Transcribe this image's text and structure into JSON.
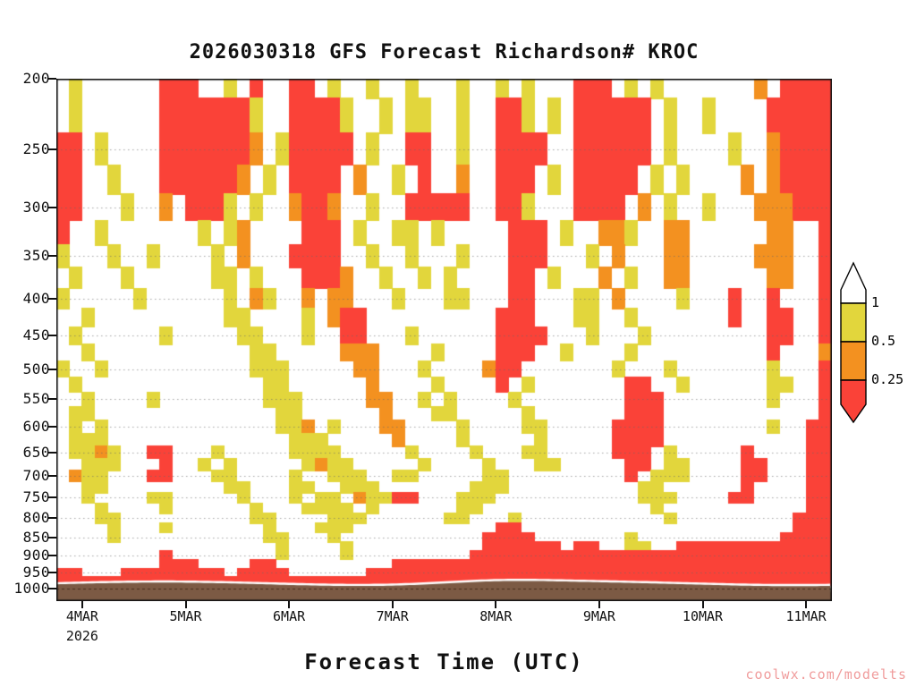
{
  "watermark": "coolwx.com/modelts",
  "chart_data": {
    "type": "heatmap",
    "title": "2026030318 GFS Forecast Richardson# KROC",
    "xlabel": "Forecast Time (UTC)",
    "year_label": "2026",
    "x_tick_labels": [
      "4MAR",
      "5MAR",
      "6MAR",
      "7MAR",
      "8MAR",
      "9MAR",
      "10MAR",
      "11MAR"
    ],
    "x_tick_hours": [
      6,
      30,
      54,
      78,
      102,
      126,
      150,
      174
    ],
    "x_hours_range": [
      0,
      180
    ],
    "y_tick_labels": [
      200,
      250,
      300,
      350,
      400,
      450,
      500,
      550,
      600,
      650,
      700,
      750,
      800,
      850,
      900,
      950,
      1000
    ],
    "y_scale": "log",
    "y_domain": [
      200,
      1040
    ],
    "row_start_hpa": 200,
    "row_step_hpa": 25,
    "grid": "dotted horizontal gridlines at labeled pressure levels",
    "legend": {
      "tick_labels": [
        "1",
        "0.5",
        "0.25"
      ],
      "segment_colors": [
        "#ffffff",
        "#e2d63c",
        "#f39120",
        "#fa4238"
      ],
      "position": "right"
    },
    "value_bins": {
      ".": "Ri > 1 (white)",
      "y": "0.5 < Ri < 1 (yellow)",
      "o": "0.25 < Ri < 0.5 (orange)",
      "r": "Ri < 0.25 (red)"
    },
    "colors": {
      ".": "#ffffff",
      "y": "#e2d63c",
      "o": "#f39120",
      "r": "#fa4238",
      "terrain": "#7c5a44"
    },
    "grid_rows": [
      [
        ".y......rr",
        "r..y.r..rr",
        ".y..y..y..",
        ".y..y.y...",
        "rrr.y.y...",
        "....o.rrrr"
      ],
      [
        ".y......rr",
        "rrrrry..rr",
        "rry..y.yy.",
        ".y..rry.y.",
        "rrrrrr.y..",
        "y....rrrrr"
      ],
      [
        "rr.y....rr",
        "rrrrro.yrr",
        "rrr.y..rr.",
        ".y..rrrr..",
        "rrrrrr.y..",
        "..y..orrrr"
      ],
      [
        "rr..y...rr",
        "rrrro.y.rr",
        "rr.o..y.r.",
        ".o..rrr.y.",
        "rrrrr.y.y.",
        "...o.orrrr"
      ],
      [
        "rr...y..o.",
        "rrry.y..or",
        "ro..y..rrr",
        "rr..rry...",
        "rrrr.o.y..",
        "y...ooorrr"
      ],
      [
        "r..y......",
        ".y.yo....r",
        "rr.y..yy.y",
        ".....rrr.y",
        "..ooy..oo.",
        ".....oo..r"
      ],
      [
        "y...y..y..",
        "..y.o...rr",
        "rr..y..y..",
        ".y...rrr..",
        ".y.o...oo.",
        "....ooo..r"
      ],
      [
        ".y...y....",
        "..yy.y...r",
        "rro..y..y.",
        "y....rr.y.",
        "..o.y..oo.",
        ".....oo..r"
      ],
      [
        "y.....y...",
        "...y.oy..o",
        ".oo...y...",
        "yy...rr...",
        "yy.o....y.",
        "..r..r...r"
      ],
      [
        "..y.......",
        "...yy....y",
        ".orr......",
        "....rrr...",
        "yy..y.....",
        "..r..rr..r"
      ],
      [
        ".y......y.",
        "....yy...y",
        "..rr...y..",
        "....rrrr..",
        ".y...y....",
        ".....rr..r"
      ],
      [
        "..y.......",
        ".....yy...",
        "..ooo....y",
        "....rrr..y",
        "....y.....",
        ".....r...o"
      ],
      [
        "y..y......",
        ".....yyy..",
        "...oo...y.",
        "...orr....",
        "...y...y..",
        ".....y...r"
      ],
      [
        ".y........",
        "......yy..",
        "....o....y",
        "....r.y...",
        "....rr..y.",
        ".....yy..r"
      ],
      [
        "..y....y..",
        "......yyy.",
        "....oo..y.",
        "y....y....",
        "....rrr...",
        ".....y...r"
      ],
      [
        ".yy.......",
        ".......yy.",
        ".....o...y",
        "y.....y...",
        "....rrr...",
        ".........r"
      ],
      [
        ".y.y......",
        ".......yyo",
        ".y...oo...",
        ".y....yy..",
        "...rrrr...",
        ".....y..rr"
      ],
      [
        ".yyy......",
        "........yy",
        "y.....o...",
        ".y.....y..",
        "...rrrr...",
        "........rr"
      ],
      [
        ".yyoy..rr.",
        "..y.....yy",
        "yy.....y..",
        "..y...yy..",
        "...rrr.y..",
        "...r....rr"
      ],
      [
        "..yyy...r.",
        ".y.y.....y",
        "oyy.....y.",
        "...y...yy.",
        "....rr.yy.",
        "...rr...rr"
      ],
      [
        ".oyy...rr.",
        "..yy....y.",
        ".yyy..yy..",
        "...yy.....",
        "....r.yyy.",
        "...rr...rr"
      ],
      [
        "..yy......",
        "...yy...yy",
        "..yyy.....",
        "..yyy.....",
        ".....yy...",
        "...r....rr"
      ],
      [
        "..y....yy.",
        "....y...y.",
        "yy.oyyrr..",
        ".yyy......",
        ".....yyy..",
        "..rr....rr"
      ],
      [
        "...y....y.",
        ".....y...y",
        "yyy.y.....",
        ".yy.......",
        "......y...",
        "........rr"
      ],
      [
        "...yy.....",
        ".....yy...",
        ".yyy......",
        "yy...y....",
        ".......y..",
        ".......rrr"
      ],
      [
        "....y...y.",
        "......y...",
        "yyy.......",
        "....rr....",
        "..........",
        ".......rrr"
      ],
      [
        "....y.....",
        "......yy..",
        ".y........",
        "...rrrr...",
        "....y.....",
        "......rrrr"
      ],
      [
        "..........",
        ".......y..",
        "..y.......",
        "...rrrrrr.",
        "rr..yy..rr",
        "rrrrrrrrrr"
      ],
      [
        "........r.",
        ".......y..",
        "..y.......",
        "..rrrrrrrr",
        "rrrrrrrrrr",
        "rrrrrrrrrr"
      ],
      [
        "........rr",
        "r....rr...",
        "......rrrr",
        "rrrrrrrrrr",
        "rrrrrrrrrr",
        "rrrrrrrrrr"
      ],
      [
        "rr...rrrrr",
        "rrr.rrrr..",
        "....rrrrrr",
        "rrrrrrrrrr",
        "rrrrrrrrrr",
        "rrrrrrrrrr"
      ],
      [
        "rrrrrrrrrr",
        "rrrrrrrrrr",
        "rrrrrrrrrr",
        "rrrrrrrrrr",
        "rrrrrrrrrr",
        "rrrrrrrrrr"
      ]
    ]
  }
}
